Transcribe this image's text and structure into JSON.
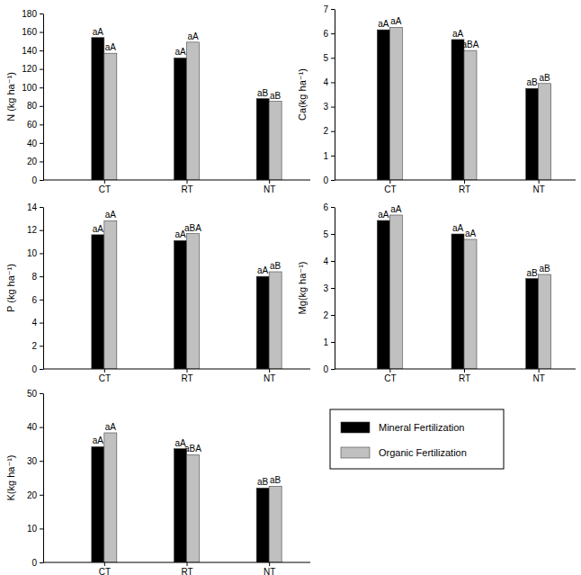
{
  "chart_data": [
    {
      "type": "bar",
      "ylabel": "N (kg ha⁻¹)",
      "categories": [
        "CT",
        "RT",
        "NT"
      ],
      "series": [
        {
          "name": "Mineral Fertilization",
          "color": "#000000",
          "values": [
            154,
            132,
            88
          ],
          "annotations": [
            "aA",
            "aA",
            "aB"
          ]
        },
        {
          "name": "Organic Fertilization",
          "color": "#c0c0c0",
          "values": [
            137,
            149,
            85
          ],
          "annotations": [
            "aA",
            "aA",
            "aB"
          ]
        }
      ],
      "ylim": [
        0,
        180
      ],
      "yticks": [
        0,
        20,
        40,
        60,
        80,
        100,
        120,
        140,
        160,
        180
      ]
    },
    {
      "type": "bar",
      "ylabel": "Ca(kg ha⁻¹)",
      "categories": [
        "CT",
        "RT",
        "NT"
      ],
      "series": [
        {
          "name": "Mineral Fertilization",
          "color": "#000000",
          "values": [
            6.15,
            5.75,
            3.75
          ],
          "annotations": [
            "aA",
            "aA",
            "aB"
          ]
        },
        {
          "name": "Organic Fertilization",
          "color": "#c0c0c0",
          "values": [
            6.25,
            5.3,
            3.95
          ],
          "annotations": [
            "aA",
            "aBA",
            "aB"
          ]
        }
      ],
      "ylim": [
        0,
        7
      ],
      "yticks": [
        0,
        1,
        2,
        3,
        4,
        5,
        6,
        7
      ]
    },
    {
      "type": "bar",
      "ylabel": "P (kg ha⁻¹)",
      "categories": [
        "CT",
        "RT",
        "NT"
      ],
      "series": [
        {
          "name": "Mineral Fertilization",
          "color": "#000000",
          "values": [
            11.6,
            11.1,
            8.0
          ],
          "annotations": [
            "aA",
            "aA",
            "aA"
          ]
        },
        {
          "name": "Organic Fertilization",
          "color": "#c0c0c0",
          "values": [
            12.8,
            11.7,
            8.4
          ],
          "annotations": [
            "aA",
            "aBA",
            "aB"
          ]
        }
      ],
      "ylim": [
        0,
        14
      ],
      "yticks": [
        0,
        2,
        4,
        6,
        8,
        10,
        12,
        14
      ]
    },
    {
      "type": "bar",
      "ylabel": "Mg(kg ha⁻¹)",
      "categories": [
        "CT",
        "RT",
        "NT"
      ],
      "series": [
        {
          "name": "Mineral Fertilization",
          "color": "#000000",
          "values": [
            5.5,
            5.0,
            3.35
          ],
          "annotations": [
            "aA",
            "aA",
            "aB"
          ]
        },
        {
          "name": "Organic Fertilization",
          "color": "#c0c0c0",
          "values": [
            5.7,
            4.8,
            3.5
          ],
          "annotations": [
            "aA",
            "aA",
            "aB"
          ]
        }
      ],
      "ylim": [
        0,
        6
      ],
      "yticks": [
        0,
        1,
        2,
        3,
        4,
        5,
        6
      ]
    },
    {
      "type": "bar",
      "ylabel": "K(kg ha⁻¹)",
      "categories": [
        "CT",
        "RT",
        "NT"
      ],
      "series": [
        {
          "name": "Mineral Fertilization",
          "color": "#000000",
          "values": [
            34.2,
            33.6,
            22.0
          ],
          "annotations": [
            "aA",
            "aA",
            "aB"
          ]
        },
        {
          "name": "Organic Fertilization",
          "color": "#c0c0c0",
          "values": [
            38.3,
            31.8,
            22.5
          ],
          "annotations": [
            "aA",
            "aBA",
            "aB"
          ]
        }
      ],
      "ylim": [
        0,
        50
      ],
      "yticks": [
        0,
        10,
        20,
        30,
        40,
        50
      ],
      "legend": "right"
    }
  ]
}
